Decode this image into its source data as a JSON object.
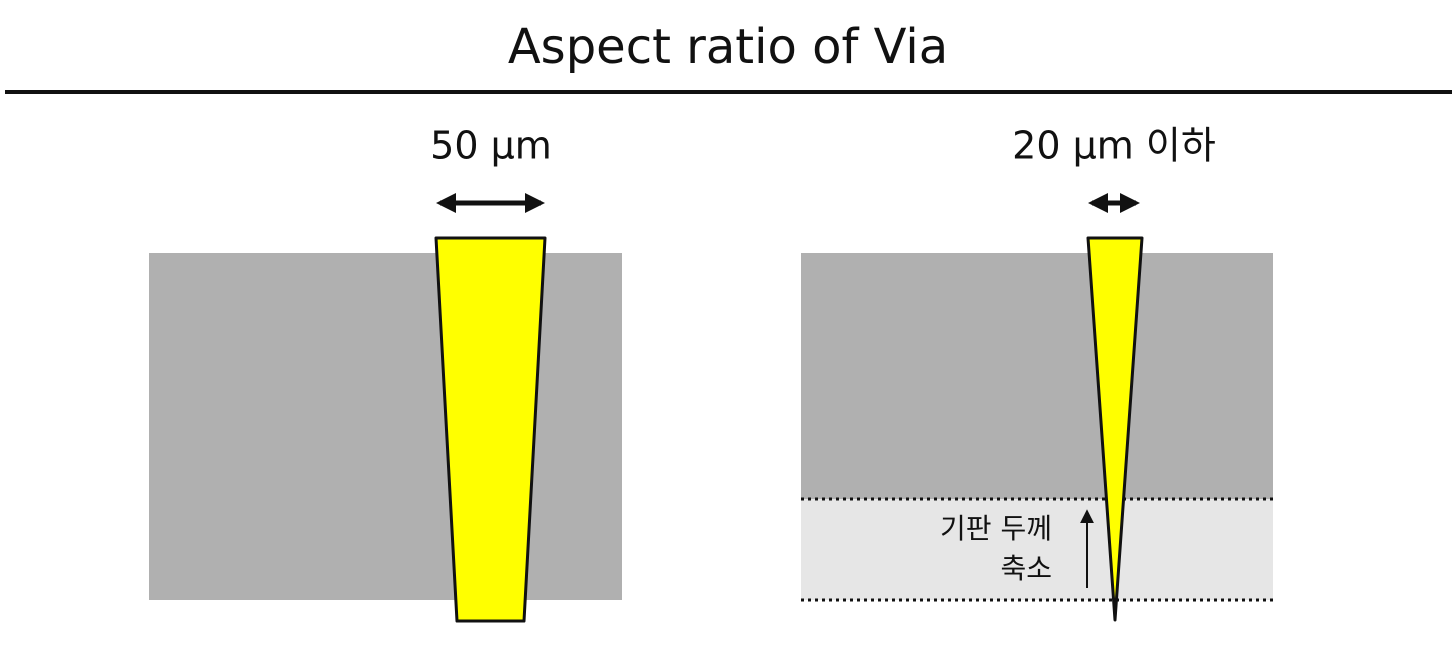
{
  "title": "Aspect ratio of Via",
  "left": {
    "width_label": "50 μm"
  },
  "right": {
    "width_label": "20 μm 이하",
    "annotation": [
      "기판 두께",
      "축소"
    ]
  }
}
